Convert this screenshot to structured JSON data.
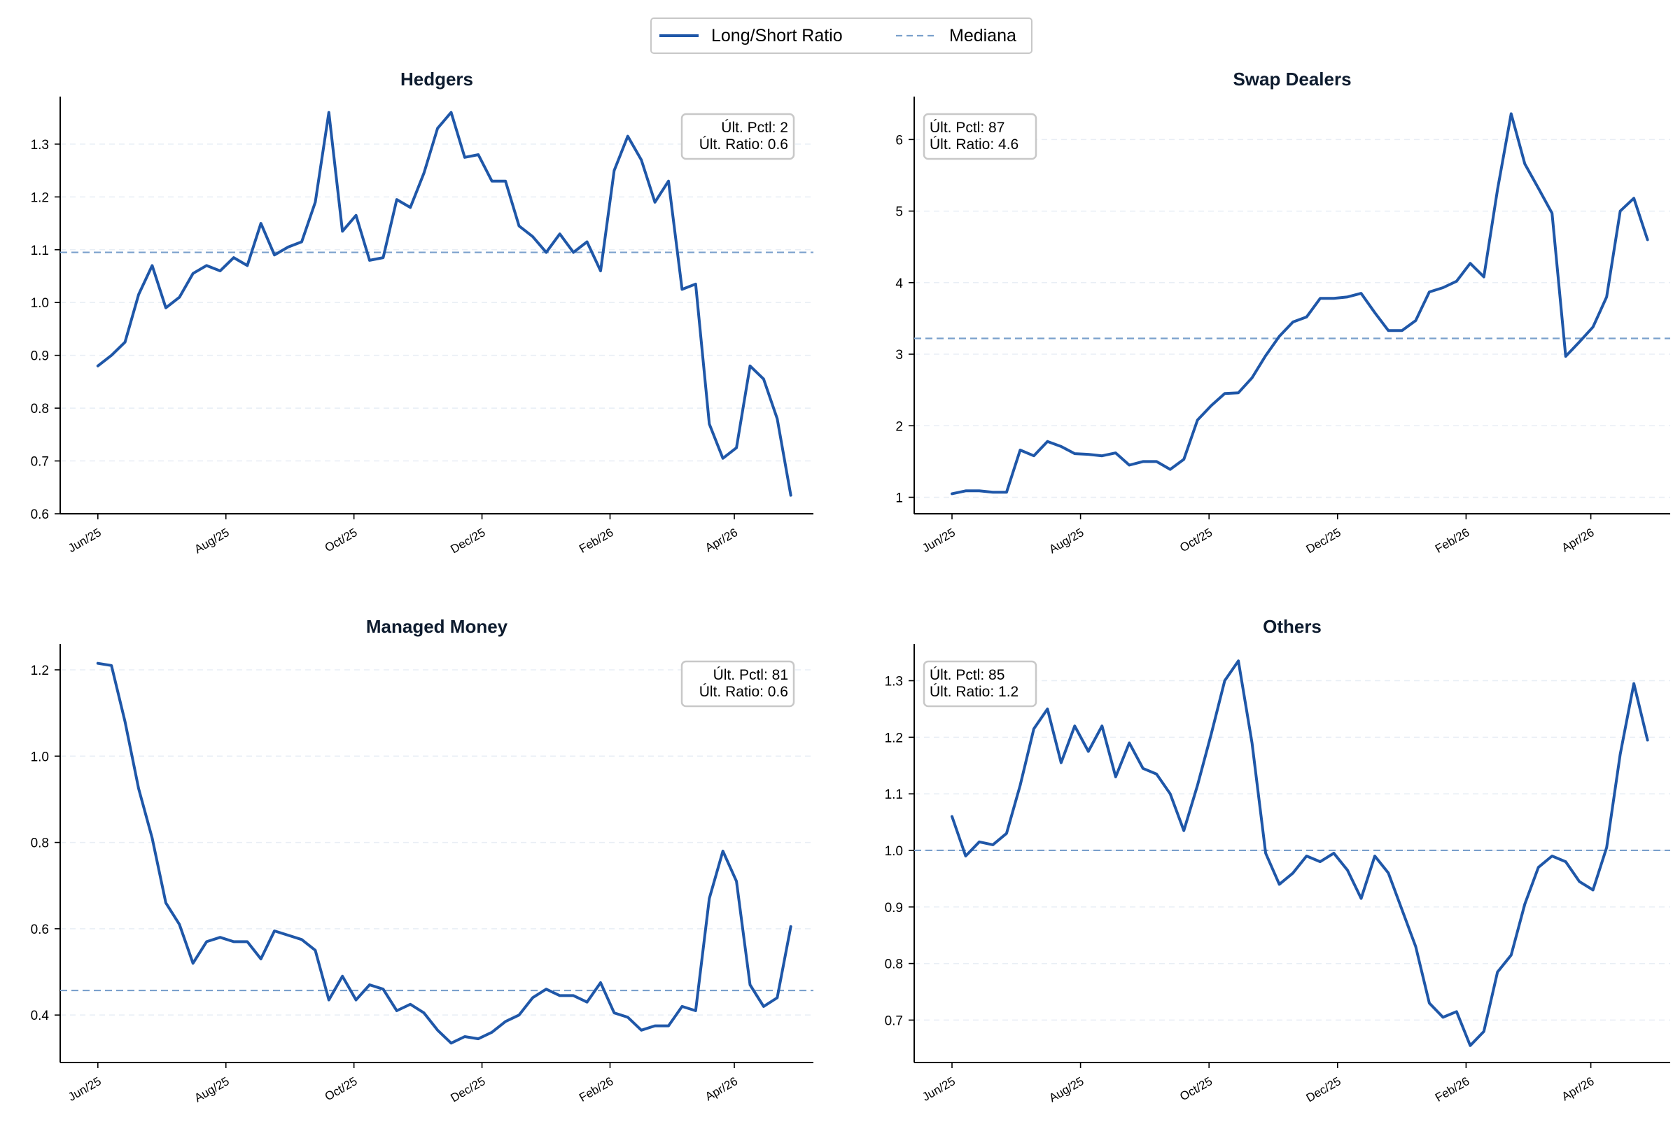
{
  "legend": {
    "ratio_label": "Long/Short Ratio",
    "median_label": "Mediana"
  },
  "colors": {
    "line": "#1f57a8",
    "median": "#7aa0cc",
    "grid": "#e8eef5",
    "axis": "#000000",
    "title": "#0d1b2e",
    "box_border": "#c8c8c8"
  },
  "chart_data": [
    {
      "type": "line",
      "title": "Hedgers",
      "xlabel": "",
      "ylabel": "",
      "x_ticks": [
        "Jun/25",
        "Aug/25",
        "Oct/25",
        "Dec/25",
        "Feb/26",
        "Apr/26"
      ],
      "ylim": [
        0.6,
        1.39
      ],
      "y_ticks": [
        "0.6",
        "0.7",
        "0.8",
        "0.9",
        "1.0",
        "1.1",
        "1.2",
        "1.3"
      ],
      "y_tick_values": [
        0.6,
        0.7,
        0.8,
        0.9,
        1.0,
        1.1,
        1.2,
        1.3
      ],
      "median": 1.095,
      "grid": true,
      "stats_position": "top-right",
      "stats": [
        "Últ. Pctl: 2",
        "Últ. Ratio: 0.6"
      ],
      "series": [
        {
          "values": [
            0.88,
            0.9,
            0.925,
            1.015,
            1.07,
            0.99,
            1.01,
            1.055,
            1.07,
            1.06,
            1.085,
            1.07,
            1.15,
            1.09,
            1.105,
            1.115,
            1.19,
            1.36,
            1.135,
            1.165,
            1.08,
            1.085,
            1.195,
            1.18,
            1.245,
            1.33,
            1.36,
            1.275,
            1.28,
            1.23,
            1.23,
            1.145,
            1.125,
            1.095,
            1.13,
            1.095,
            1.115,
            1.06,
            1.25,
            1.315,
            1.27,
            1.19,
            1.23,
            1.025,
            1.035,
            0.77,
            0.705,
            0.725,
            0.88,
            0.855,
            0.78,
            0.635
          ]
        }
      ]
    },
    {
      "type": "line",
      "title": "Swap Dealers",
      "xlabel": "",
      "ylabel": "",
      "x_ticks": [
        "Jun/25",
        "Aug/25",
        "Oct/25",
        "Dec/25",
        "Feb/26",
        "Apr/26"
      ],
      "ylim": [
        0.77,
        6.6
      ],
      "y_ticks": [
        "1",
        "2",
        "3",
        "4",
        "5",
        "6"
      ],
      "y_tick_values": [
        1,
        2,
        3,
        4,
        5,
        6
      ],
      "median": 3.22,
      "grid": true,
      "stats_position": "top-left",
      "stats": [
        "Últ. Pctl: 87",
        "Últ. Ratio: 4.6"
      ],
      "series": [
        {
          "values": [
            1.05,
            1.09,
            1.09,
            1.07,
            1.07,
            1.66,
            1.58,
            1.78,
            1.71,
            1.61,
            1.6,
            1.58,
            1.62,
            1.45,
            1.5,
            1.5,
            1.39,
            1.53,
            2.08,
            2.28,
            2.45,
            2.46,
            2.67,
            2.98,
            3.25,
            3.45,
            3.52,
            3.78,
            3.78,
            3.8,
            3.85,
            3.58,
            3.33,
            3.33,
            3.47,
            3.87,
            3.93,
            4.02,
            4.27,
            4.08,
            5.3,
            6.36,
            5.66,
            5.32,
            4.97,
            2.97,
            3.17,
            3.38,
            3.8,
            5.0,
            5.18,
            4.6
          ]
        }
      ]
    },
    {
      "type": "line",
      "title": "Managed Money",
      "xlabel": "",
      "ylabel": "",
      "x_ticks": [
        "Jun/25",
        "Aug/25",
        "Oct/25",
        "Dec/25",
        "Feb/26",
        "Apr/26"
      ],
      "ylim": [
        0.29,
        1.26
      ],
      "y_ticks": [
        "0.4",
        "0.6",
        "0.8",
        "1.0",
        "1.2"
      ],
      "y_tick_values": [
        0.4,
        0.6,
        0.8,
        1.0,
        1.2
      ],
      "median": 0.457,
      "grid": true,
      "stats_position": "top-right",
      "stats": [
        "Últ. Pctl: 81",
        "Últ. Ratio: 0.6"
      ],
      "series": [
        {
          "values": [
            1.215,
            1.21,
            1.08,
            0.925,
            0.81,
            0.66,
            0.61,
            0.52,
            0.57,
            0.58,
            0.57,
            0.57,
            0.53,
            0.595,
            0.585,
            0.575,
            0.55,
            0.435,
            0.49,
            0.435,
            0.47,
            0.46,
            0.41,
            0.425,
            0.405,
            0.365,
            0.335,
            0.35,
            0.345,
            0.36,
            0.385,
            0.4,
            0.44,
            0.46,
            0.445,
            0.445,
            0.43,
            0.475,
            0.405,
            0.395,
            0.365,
            0.375,
            0.375,
            0.42,
            0.41,
            0.67,
            0.78,
            0.71,
            0.47,
            0.42,
            0.44,
            0.605
          ]
        }
      ]
    },
    {
      "type": "line",
      "title": "Others",
      "xlabel": "",
      "ylabel": "",
      "x_ticks": [
        "Jun/25",
        "Aug/25",
        "Oct/25",
        "Dec/25",
        "Feb/26",
        "Apr/26"
      ],
      "ylim": [
        0.625,
        1.365
      ],
      "y_ticks": [
        "0.7",
        "0.8",
        "0.9",
        "1.0",
        "1.1",
        "1.2",
        "1.3"
      ],
      "y_tick_values": [
        0.7,
        0.8,
        0.9,
        1.0,
        1.1,
        1.2,
        1.3
      ],
      "median": 1.0,
      "grid": true,
      "stats_position": "top-left",
      "stats": [
        "Últ. Pctl: 85",
        "Últ. Ratio: 1.2"
      ],
      "series": [
        {
          "values": [
            1.06,
            0.99,
            1.015,
            1.01,
            1.03,
            1.115,
            1.215,
            1.25,
            1.155,
            1.22,
            1.175,
            1.22,
            1.13,
            1.19,
            1.145,
            1.135,
            1.1,
            1.035,
            1.115,
            1.205,
            1.3,
            1.335,
            1.19,
            0.995,
            0.94,
            0.96,
            0.99,
            0.98,
            0.995,
            0.965,
            0.915,
            0.99,
            0.96,
            0.895,
            0.83,
            0.73,
            0.705,
            0.715,
            0.655,
            0.68,
            0.785,
            0.815,
            0.905,
            0.97,
            0.99,
            0.98,
            0.945,
            0.93,
            1.005,
            1.17,
            1.295,
            1.195
          ]
        }
      ]
    }
  ]
}
